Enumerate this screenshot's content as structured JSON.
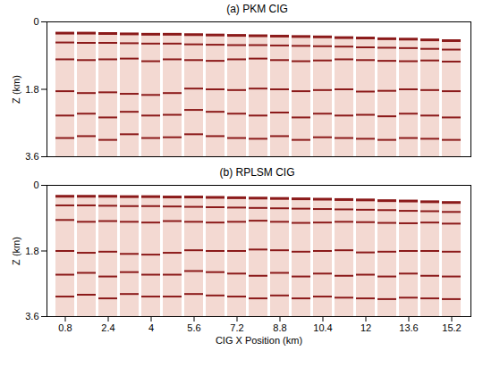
{
  "chart_data": [
    {
      "type": "seismic_gather",
      "title": "(a) PKM CIG",
      "ylabel": "Z (km)",
      "ylim": [
        0,
        3.6
      ],
      "yticks": [
        0,
        1.8,
        3.6
      ],
      "tick_labels": "y",
      "color": "#8b1a1a",
      "gathers": [
        0.8,
        1.6,
        2.4,
        3.2,
        4,
        4.8,
        5.6,
        6.4,
        7.2,
        8,
        8.8,
        9.6,
        10.4,
        11.2,
        12,
        12.8,
        13.6,
        14.4,
        15.2
      ],
      "horizons": [
        [
          0.3,
          0.3,
          0.31,
          0.32,
          0.33,
          0.33,
          0.34,
          0.35,
          0.36,
          0.37,
          0.38,
          0.39,
          0.4,
          0.42,
          0.43,
          0.45,
          0.46,
          0.48,
          0.5
        ],
        [
          0.55,
          0.56,
          0.56,
          0.57,
          0.58,
          0.58,
          0.6,
          0.61,
          0.62,
          0.62,
          0.63,
          0.64,
          0.65,
          0.66,
          0.68,
          0.69,
          0.7,
          0.72,
          0.74
        ],
        [
          1.0,
          1.02,
          1.0,
          0.98,
          1.05,
          1.0,
          1.02,
          1.04,
          1.0,
          0.98,
          1.02,
          1.05,
          1.03,
          1.0,
          1.02,
          1.04,
          1.05,
          1.03,
          1.06
        ],
        [
          1.85,
          1.9,
          1.88,
          1.92,
          1.95,
          1.9,
          1.78,
          1.8,
          1.82,
          1.78,
          1.8,
          1.85,
          1.82,
          1.8,
          1.86,
          1.84,
          1.8,
          1.82,
          1.85
        ],
        [
          2.5,
          2.45,
          2.55,
          2.4,
          2.5,
          2.48,
          2.35,
          2.4,
          2.45,
          2.5,
          2.42,
          2.55,
          2.45,
          2.5,
          2.48,
          2.52,
          2.45,
          2.5,
          2.55
        ],
        [
          3.1,
          3.05,
          3.15,
          3.0,
          3.1,
          3.08,
          3.0,
          3.05,
          3.1,
          3.12,
          3.05,
          3.15,
          3.08,
          3.1,
          3.12,
          3.15,
          3.1,
          3.12,
          3.15
        ]
      ]
    },
    {
      "type": "seismic_gather",
      "title": "(b) RPLSM CIG",
      "xlabel": "CIG X Position (km)",
      "ylabel": "Z (km)",
      "ylim": [
        0,
        3.6
      ],
      "yticks": [
        0,
        1.8,
        3.6
      ],
      "xticks": [
        0.8,
        2.4,
        4,
        5.6,
        7.2,
        8.8,
        10.4,
        12,
        13.6,
        15.2
      ],
      "color": "#8b1a1a",
      "gathers": [
        0.8,
        1.6,
        2.4,
        3.2,
        4,
        4.8,
        5.6,
        6.4,
        7.2,
        8,
        8.8,
        9.6,
        10.4,
        11.2,
        12,
        12.8,
        13.6,
        14.4,
        15.2
      ],
      "horizons": [
        [
          0.3,
          0.3,
          0.3,
          0.31,
          0.31,
          0.32,
          0.32,
          0.33,
          0.34,
          0.35,
          0.36,
          0.37,
          0.38,
          0.39,
          0.4,
          0.42,
          0.43,
          0.45,
          0.47
        ],
        [
          0.55,
          0.55,
          0.56,
          0.57,
          0.57,
          0.58,
          0.59,
          0.6,
          0.61,
          0.62,
          0.63,
          0.64,
          0.65,
          0.66,
          0.67,
          0.68,
          0.7,
          0.71,
          0.73
        ],
        [
          0.95,
          1.0,
          0.98,
          1.0,
          1.02,
          0.98,
          1.0,
          1.02,
          1.0,
          0.97,
          1.0,
          1.03,
          1.02,
          1.0,
          1.01,
          1.03,
          1.04,
          1.02,
          1.05
        ],
        [
          1.8,
          1.85,
          1.82,
          1.88,
          1.9,
          1.85,
          1.78,
          1.8,
          1.8,
          1.76,
          1.78,
          1.82,
          1.8,
          1.78,
          1.84,
          1.82,
          1.8,
          1.8,
          1.82
        ],
        [
          2.45,
          2.4,
          2.5,
          2.38,
          2.45,
          2.45,
          2.35,
          2.38,
          2.42,
          2.48,
          2.4,
          2.5,
          2.42,
          2.48,
          2.45,
          2.5,
          2.42,
          2.48,
          2.5
        ],
        [
          3.05,
          3.0,
          3.1,
          2.98,
          3.05,
          3.05,
          2.98,
          3.02,
          3.05,
          3.1,
          3.02,
          3.1,
          3.05,
          3.08,
          3.1,
          3.12,
          3.08,
          3.1,
          3.12
        ]
      ]
    }
  ]
}
